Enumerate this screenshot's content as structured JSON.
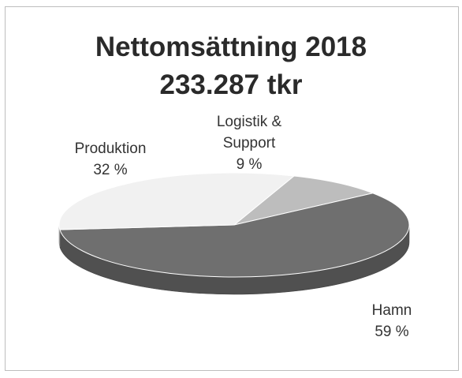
{
  "chart_data": {
    "type": "pie",
    "title": "Nettomsättning 2018",
    "subtitle": "233.287 tkr",
    "slices": [
      {
        "name": "Logistik & Support",
        "label_lines": [
          "Logistik &",
          "Support"
        ],
        "percent_label": "9 %",
        "value": 9,
        "color": "#bdbdbd"
      },
      {
        "name": "Hamn",
        "label_lines": [
          "Hamn"
        ],
        "percent_label": "59 %",
        "value": 59,
        "color": "#6f6f6f"
      },
      {
        "name": "Produktion",
        "label_lines": [
          "Produktion"
        ],
        "percent_label": "32 %",
        "value": 32,
        "color": "#f1f1f1"
      }
    ]
  }
}
